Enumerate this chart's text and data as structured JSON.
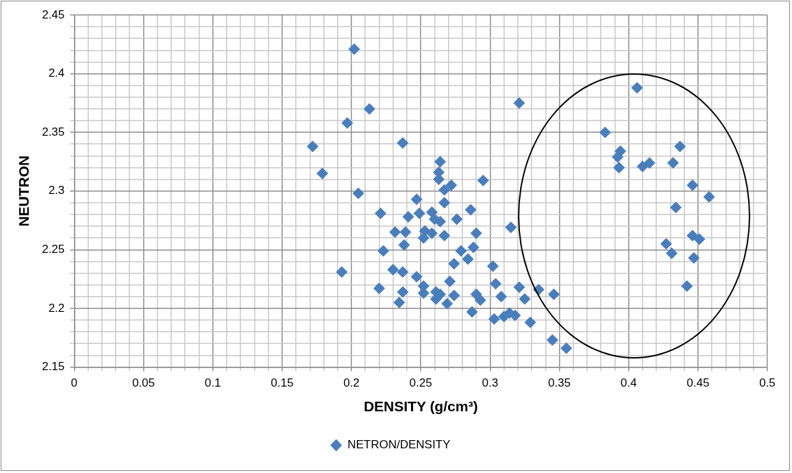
{
  "chart_data": {
    "type": "scatter",
    "xlabel": "DENSITY (g/cm³)",
    "ylabel": "NEUTRON",
    "xlim": [
      0,
      0.5
    ],
    "ylim": [
      2.15,
      2.45
    ],
    "xticks": [
      0,
      {
        "value": 0.01,
        "label": null
      },
      {
        "value": 0.02,
        "label": null
      },
      {
        "value": 0.03,
        "label": null
      },
      {
        "value": 0.04,
        "label": null
      },
      0.05,
      {
        "value": 0.06,
        "label": null
      },
      {
        "value": 0.07,
        "label": null
      },
      {
        "value": 0.08,
        "label": null
      },
      {
        "value": 0.09,
        "label": null
      },
      0.1,
      {
        "value": 0.11,
        "label": null
      },
      {
        "value": 0.12,
        "label": null
      },
      {
        "value": 0.13,
        "label": null
      },
      {
        "value": 0.14,
        "label": null
      },
      0.15,
      {
        "value": 0.16,
        "label": null
      },
      {
        "value": 0.17,
        "label": null
      },
      {
        "value": 0.18,
        "label": null
      },
      {
        "value": 0.19,
        "label": null
      },
      0.2,
      {
        "value": 0.21,
        "label": null
      },
      {
        "value": 0.22,
        "label": null
      },
      {
        "value": 0.23,
        "label": null
      },
      {
        "value": 0.24,
        "label": null
      },
      0.25,
      {
        "value": 0.26,
        "label": null
      },
      {
        "value": 0.27,
        "label": null
      },
      {
        "value": 0.28,
        "label": null
      },
      {
        "value": 0.29,
        "label": null
      },
      0.3,
      {
        "value": 0.31,
        "label": null
      },
      {
        "value": 0.32,
        "label": null
      },
      {
        "value": 0.33,
        "label": null
      },
      {
        "value": 0.34,
        "label": null
      },
      0.35,
      {
        "value": 0.36,
        "label": null
      },
      {
        "value": 0.37,
        "label": null
      },
      {
        "value": 0.38,
        "label": null
      },
      {
        "value": 0.39,
        "label": null
      },
      0.4,
      {
        "value": 0.41,
        "label": null
      },
      {
        "value": 0.42,
        "label": null
      },
      {
        "value": 0.43,
        "label": null
      },
      {
        "value": 0.44,
        "label": null
      },
      0.45,
      {
        "value": 0.46,
        "label": null
      },
      {
        "value": 0.47,
        "label": null
      },
      {
        "value": 0.48,
        "label": null
      },
      {
        "value": 0.49,
        "label": null
      },
      0.5
    ],
    "yticks": [
      2.15,
      {
        "value": 2.16,
        "label": null
      },
      {
        "value": 2.17,
        "label": null
      },
      {
        "value": 2.18,
        "label": null
      },
      {
        "value": 2.19,
        "label": null
      },
      2.2,
      {
        "value": 2.21,
        "label": null
      },
      {
        "value": 2.22,
        "label": null
      },
      {
        "value": 2.23,
        "label": null
      },
      {
        "value": 2.24,
        "label": null
      },
      2.25,
      {
        "value": 2.26,
        "label": null
      },
      {
        "value": 2.27,
        "label": null
      },
      {
        "value": 2.28,
        "label": null
      },
      {
        "value": 2.29,
        "label": null
      },
      2.3,
      {
        "value": 2.31,
        "label": null
      },
      {
        "value": 2.32,
        "label": null
      },
      {
        "value": 2.33,
        "label": null
      },
      {
        "value": 2.34,
        "label": null
      },
      2.35,
      {
        "value": 2.36,
        "label": null
      },
      {
        "value": 2.37,
        "label": null
      },
      {
        "value": 2.38,
        "label": null
      },
      {
        "value": 2.39,
        "label": null
      },
      2.4,
      {
        "value": 2.41,
        "label": null
      },
      {
        "value": 2.42,
        "label": null
      },
      {
        "value": 2.43,
        "label": null
      },
      {
        "value": 2.44,
        "label": null
      },
      2.45
    ],
    "grid": true,
    "legend": "bottom",
    "marker": "diamond",
    "series": [
      {
        "name": "NETRON/DENSITY",
        "color": "#4a7ebb",
        "x": [
          0.202,
          0.213,
          0.197,
          0.172,
          0.237,
          0.321,
          0.179,
          0.264,
          0.263,
          0.263,
          0.272,
          0.295,
          0.267,
          0.205,
          0.247,
          0.221,
          0.241,
          0.249,
          0.258,
          0.267,
          0.26,
          0.264,
          0.276,
          0.2315,
          0.239,
          0.253,
          0.252,
          0.258,
          0.267,
          0.238,
          0.223,
          0.286,
          0.29,
          0.288,
          0.279,
          0.284,
          0.274,
          0.271,
          0.302,
          0.304,
          0.315,
          0.274,
          0.269,
          0.29,
          0.293,
          0.308,
          0.321,
          0.325,
          0.335,
          0.346,
          0.287,
          0.303,
          0.31,
          0.314,
          0.318,
          0.329,
          0.345,
          0.355,
          0.406,
          0.383,
          0.394,
          0.392,
          0.393,
          0.41,
          0.415,
          0.437,
          0.432,
          0.446,
          0.458,
          0.434,
          0.427,
          0.431,
          0.446,
          0.451,
          0.447,
          0.442,
          0.193,
          0.23,
          0.237,
          0.22,
          0.237,
          0.2345,
          0.247,
          0.252,
          0.252,
          0.261,
          0.264,
          0.261
        ],
        "values": [
          2.421,
          2.37,
          2.358,
          2.338,
          2.341,
          2.375,
          2.315,
          2.325,
          2.316,
          2.31,
          2.305,
          2.309,
          2.301,
          2.298,
          2.293,
          2.281,
          2.278,
          2.281,
          2.282,
          2.29,
          2.276,
          2.274,
          2.276,
          2.265,
          2.265,
          2.266,
          2.26,
          2.264,
          2.262,
          2.254,
          2.249,
          2.284,
          2.264,
          2.252,
          2.249,
          2.242,
          2.238,
          2.223,
          2.236,
          2.221,
          2.269,
          2.211,
          2.204,
          2.212,
          2.207,
          2.21,
          2.218,
          2.208,
          2.216,
          2.212,
          2.197,
          2.191,
          2.193,
          2.196,
          2.194,
          2.188,
          2.173,
          2.166,
          2.388,
          2.35,
          2.334,
          2.329,
          2.32,
          2.321,
          2.324,
          2.338,
          2.324,
          2.305,
          2.295,
          2.286,
          2.255,
          2.247,
          2.262,
          2.259,
          2.243,
          2.219,
          2.231,
          2.233,
          2.231,
          2.217,
          2.214,
          2.205,
          2.227,
          2.219,
          2.213,
          2.214,
          2.212,
          2.208
        ]
      }
    ]
  }
}
